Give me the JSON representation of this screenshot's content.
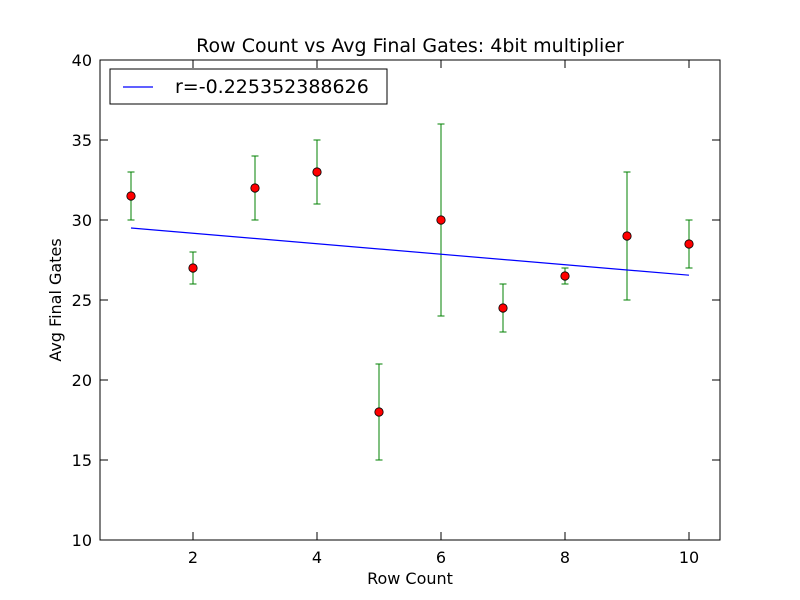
{
  "chart_data": {
    "type": "scatter",
    "title": "Row Count vs Avg Final Gates: 4bit multiplier",
    "xlabel": "Row Count",
    "ylabel": "Avg Final Gates",
    "xlim": [
      0.5,
      10.5
    ],
    "ylim": [
      10,
      40
    ],
    "xticks": [
      2,
      4,
      6,
      8,
      10
    ],
    "yticks": [
      10,
      15,
      20,
      25,
      30,
      35,
      40
    ],
    "grid": false,
    "legend_position": "top-left",
    "points": {
      "x": [
        1,
        2,
        3,
        4,
        5,
        6,
        7,
        8,
        9,
        10
      ],
      "y": [
        31.5,
        27,
        32,
        33,
        18,
        30,
        24.5,
        26.5,
        29,
        28.5
      ],
      "yerr_low": [
        30,
        26,
        30,
        31,
        15,
        24,
        23,
        26,
        25,
        27
      ],
      "yerr_high": [
        33,
        28,
        34,
        35,
        21,
        36,
        26,
        27,
        33,
        30
      ],
      "marker_color": "#ff0000",
      "errorbar_color": "#008000"
    },
    "fit_line": {
      "name": "r=-0.225352388626",
      "x": [
        1,
        10
      ],
      "y": [
        29.5,
        26.55
      ],
      "color": "#0000ff"
    }
  }
}
